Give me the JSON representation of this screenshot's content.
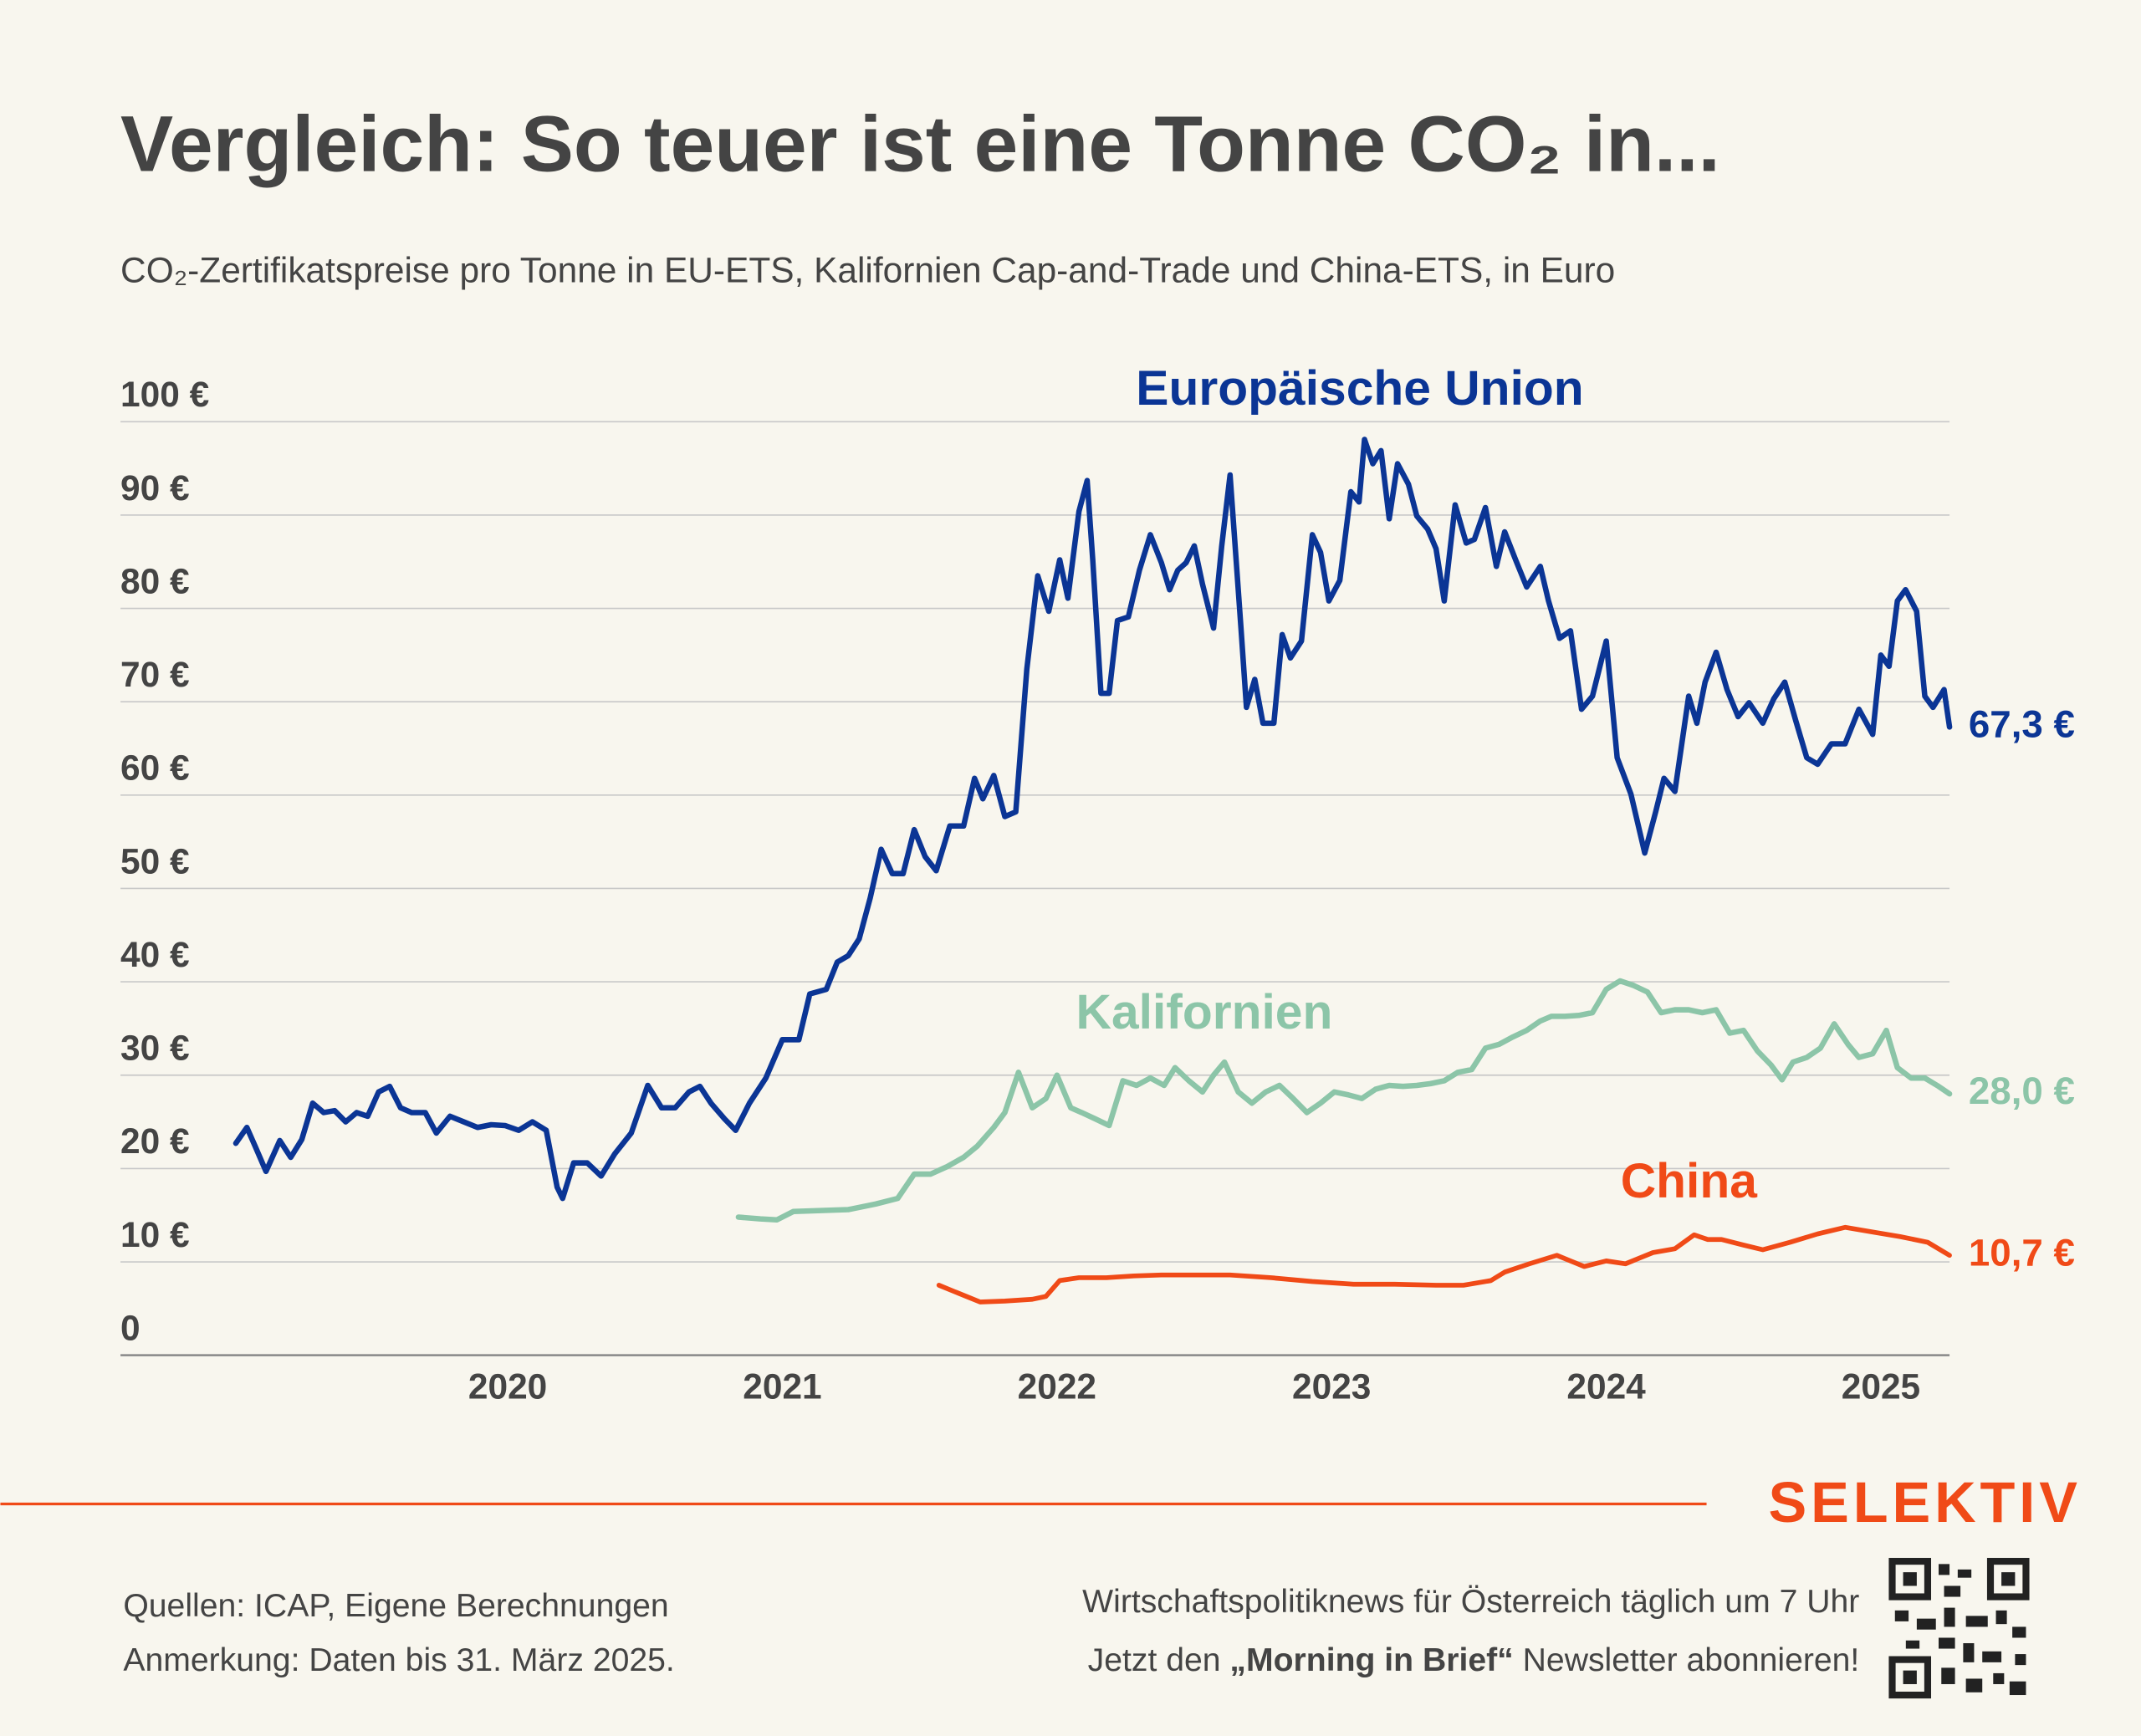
{
  "chart_data": {
    "type": "line",
    "title": "Vergleich: So teuer ist eine Tonne CO₂ in...",
    "subtitle": "CO₂-Zertifikatspreise pro Tonne in EU-ETS, Kalifornien Cap-and-Trade und China-ETS, in Euro",
    "xlim": [
      2018.59,
      2025.25
    ],
    "xticks": [
      2020,
      2021,
      2022,
      2023,
      2024,
      2025
    ],
    "ylim": [
      0,
      100
    ],
    "yticks": [
      0,
      {
        "value": 10,
        "label": "10 €"
      },
      {
        "value": 20,
        "label": "20 €"
      },
      {
        "value": 30,
        "label": "30 €"
      },
      {
        "value": 40,
        "label": "40 €"
      },
      {
        "value": 50,
        "label": "50 €"
      },
      {
        "value": 60,
        "label": "60 €"
      },
      {
        "value": 70,
        "label": "70 €"
      },
      {
        "value": 80,
        "label": "80 €"
      },
      {
        "value": 90,
        "label": "90 €"
      },
      {
        "value": 100,
        "label": "100 €"
      }
    ],
    "grid": true,
    "series": [
      {
        "name": "Europäische Union",
        "color": "#0b3595",
        "last_label": "67,3 €",
        "x": [
          2019.01,
          2019.05,
          2019.08,
          2019.12,
          2019.17,
          2019.21,
          2019.25,
          2019.29,
          2019.33,
          2019.37,
          2019.41,
          2019.45,
          2019.49,
          2019.53,
          2019.57,
          2019.61,
          2019.65,
          2019.7,
          2019.74,
          2019.79,
          2019.84,
          2019.89,
          2019.94,
          2019.99,
          2020.04,
          2020.09,
          2020.14,
          2020.18,
          2020.2,
          2020.24,
          2020.29,
          2020.34,
          2020.39,
          2020.45,
          2020.51,
          2020.56,
          2020.61,
          2020.66,
          2020.7,
          2020.74,
          2020.79,
          2020.83,
          2020.88,
          2020.94,
          2021.0,
          2021.06,
          2021.1,
          2021.16,
          2021.2,
          2021.24,
          2021.28,
          2021.32,
          2021.36,
          2021.4,
          2021.44,
          2021.48,
          2021.52,
          2021.56,
          2021.61,
          2021.66,
          2021.7,
          2021.73,
          2021.77,
          2021.81,
          2021.85,
          2021.89,
          2021.93,
          2021.97,
          2022.01,
          2022.04,
          2022.08,
          2022.11,
          2022.13,
          2022.16,
          2022.19,
          2022.22,
          2022.26,
          2022.3,
          2022.34,
          2022.38,
          2022.41,
          2022.44,
          2022.47,
          2022.5,
          2022.53,
          2022.57,
          2022.6,
          2022.63,
          2022.67,
          2022.69,
          2022.72,
          2022.75,
          2022.79,
          2022.82,
          2022.85,
          2022.89,
          2022.93,
          2022.96,
          2022.99,
          2023.03,
          2023.07,
          2023.1,
          2023.12,
          2023.15,
          2023.18,
          2023.21,
          2023.24,
          2023.28,
          2023.31,
          2023.35,
          2023.38,
          2023.41,
          2023.45,
          2023.49,
          2023.52,
          2023.56,
          2023.6,
          2023.63,
          2023.67,
          2023.71,
          2023.76,
          2023.79,
          2023.83,
          2023.87,
          2023.91,
          2023.95,
          2024.0,
          2024.04,
          2024.09,
          2024.14,
          2024.18,
          2024.21,
          2024.25,
          2024.3,
          2024.33,
          2024.36,
          2024.4,
          2024.44,
          2024.48,
          2024.52,
          2024.57,
          2024.61,
          2024.65,
          2024.69,
          2024.73,
          2024.77,
          2024.82,
          2024.87,
          2024.92,
          2024.97,
          2025.0,
          2025.03,
          2025.06,
          2025.09,
          2025.13,
          2025.16,
          2025.19,
          2025.23,
          2025.25
        ],
        "values": [
          22.7,
          24.4,
          22.4,
          19.7,
          23.0,
          21.2,
          23.1,
          27.0,
          26.0,
          26.2,
          25.0,
          26.0,
          25.6,
          28.2,
          28.8,
          26.5,
          26.0,
          26.0,
          23.8,
          25.6,
          25.0,
          24.4,
          24.7,
          24.6,
          24.1,
          25.0,
          24.1,
          18.0,
          16.8,
          20.6,
          20.6,
          19.2,
          21.6,
          23.8,
          28.9,
          26.5,
          26.5,
          28.2,
          28.8,
          27.0,
          25.3,
          24.1,
          27.0,
          29.7,
          33.8,
          33.8,
          38.7,
          39.2,
          42.1,
          42.8,
          44.6,
          49.0,
          54.2,
          51.6,
          51.6,
          56.3,
          53.4,
          51.9,
          56.7,
          56.7,
          61.8,
          59.6,
          62.1,
          57.7,
          58.2,
          73.5,
          83.5,
          79.7,
          85.2,
          81.1,
          90.4,
          93.7,
          85.2,
          70.9,
          70.9,
          78.7,
          79.1,
          84.1,
          87.9,
          84.9,
          82.0,
          84.1,
          84.9,
          86.7,
          82.6,
          77.9,
          86.7,
          94.3,
          77.9,
          69.4,
          72.4,
          67.7,
          67.7,
          77.2,
          74.7,
          76.5,
          87.9,
          86.0,
          80.8,
          83.0,
          92.5,
          91.4,
          98.1,
          95.5,
          96.9,
          89.6,
          95.5,
          93.3,
          89.9,
          88.5,
          86.4,
          80.8,
          91.1,
          87.0,
          87.4,
          90.8,
          84.5,
          88.2,
          85.2,
          82.3,
          84.5,
          80.8,
          76.8,
          77.6,
          69.2,
          70.6,
          76.5,
          64.0,
          60.1,
          53.8,
          58.2,
          61.8,
          60.4,
          70.6,
          67.7,
          72.1,
          75.3,
          71.3,
          68.4,
          69.9,
          67.7,
          70.3,
          72.1,
          68.0,
          64.0,
          63.3,
          65.5,
          65.5,
          69.2,
          66.5,
          75.0,
          73.8,
          80.8,
          82.0,
          79.7,
          70.6,
          69.4,
          71.3,
          67.3
        ]
      },
      {
        "name": "Kalifornien",
        "color": "#8cc5a8",
        "last_label": "28,0 €",
        "x": [
          2020.84,
          2020.92,
          2020.98,
          2021.04,
          2021.14,
          2021.24,
          2021.34,
          2021.42,
          2021.48,
          2021.54,
          2021.6,
          2021.66,
          2021.71,
          2021.77,
          2021.81,
          2021.86,
          2021.91,
          2021.96,
          2022.0,
          2022.05,
          2022.09,
          2022.14,
          2022.19,
          2022.24,
          2022.29,
          2022.34,
          2022.39,
          2022.43,
          2022.48,
          2022.53,
          2022.57,
          2022.61,
          2022.66,
          2022.71,
          2022.76,
          2022.81,
          2022.86,
          2022.91,
          2022.96,
          2023.01,
          2023.06,
          2023.11,
          2023.16,
          2023.21,
          2023.26,
          2023.31,
          2023.36,
          2023.41,
          2023.46,
          2023.51,
          2023.56,
          2023.61,
          2023.66,
          2023.71,
          2023.76,
          2023.8,
          2023.85,
          2023.9,
          2023.95,
          2024.0,
          2024.05,
          2024.1,
          2024.15,
          2024.2,
          2024.25,
          2024.3,
          2024.35,
          2024.4,
          2024.45,
          2024.5,
          2024.55,
          2024.6,
          2024.64,
          2024.68,
          2024.73,
          2024.78,
          2024.83,
          2024.88,
          2024.92,
          2024.97,
          2025.02,
          2025.06,
          2025.11,
          2025.16,
          2025.21,
          2025.25
        ],
        "values": [
          14.8,
          14.6,
          14.5,
          15.4,
          15.5,
          15.6,
          16.2,
          16.8,
          19.4,
          19.4,
          20.2,
          21.2,
          22.4,
          24.4,
          26.0,
          30.3,
          26.5,
          27.5,
          30.0,
          26.5,
          26.0,
          25.3,
          24.6,
          29.4,
          28.9,
          29.7,
          28.9,
          30.8,
          29.4,
          28.2,
          30.0,
          31.4,
          28.2,
          27.0,
          28.2,
          28.9,
          27.5,
          26.0,
          27.0,
          28.2,
          27.9,
          27.5,
          28.5,
          28.9,
          28.8,
          28.9,
          29.1,
          29.4,
          30.3,
          30.6,
          32.9,
          33.3,
          34.1,
          34.8,
          35.8,
          36.3,
          36.3,
          36.4,
          36.7,
          39.2,
          40.1,
          39.6,
          38.9,
          36.7,
          37.0,
          37.0,
          36.7,
          37.0,
          34.5,
          34.8,
          32.6,
          31.1,
          29.5,
          31.4,
          31.9,
          32.9,
          35.5,
          33.3,
          31.9,
          32.3,
          34.8,
          30.8,
          29.7,
          29.7,
          28.8,
          28.0
        ]
      },
      {
        "name": "China",
        "color": "#f04a17",
        "last_label": "10,7 €",
        "x": [
          2021.57,
          2021.62,
          2021.67,
          2021.72,
          2021.81,
          2021.91,
          2021.96,
          2022.01,
          2022.08,
          2022.18,
          2022.28,
          2022.38,
          2022.48,
          2022.63,
          2022.78,
          2022.93,
          2023.08,
          2023.23,
          2023.38,
          2023.48,
          2023.58,
          2023.63,
          2023.72,
          2023.82,
          2023.87,
          2023.92,
          2024.0,
          2024.07,
          2024.12,
          2024.17,
          2024.25,
          2024.32,
          2024.37,
          2024.42,
          2024.5,
          2024.57,
          2024.67,
          2024.77,
          2024.87,
          2024.97,
          2025.07,
          2025.17,
          2025.25
        ],
        "values": [
          7.5,
          6.9,
          6.3,
          5.7,
          5.8,
          6.0,
          6.3,
          8.0,
          8.3,
          8.3,
          8.5,
          8.6,
          8.6,
          8.6,
          8.3,
          7.9,
          7.6,
          7.6,
          7.5,
          7.5,
          8.0,
          8.9,
          9.8,
          10.7,
          10.1,
          9.5,
          10.1,
          9.8,
          10.4,
          11.0,
          11.4,
          12.9,
          12.4,
          12.4,
          11.8,
          11.3,
          12.1,
          13.0,
          13.7,
          13.2,
          12.7,
          12.1,
          10.7
        ]
      }
    ]
  },
  "footer": {
    "sources": "Quellen: ICAP, Eigene Berechnungen",
    "note": "Anmerkung: Daten bis 31. März 2025.",
    "brand": "SELEKTIV",
    "promo": "Wirtschaftspolitiknews für Österreich täglich um 7 Uhr",
    "cta": [
      "Jetzt den ",
      "„Morning in Brief“",
      " Newsletter abonnieren!"
    ]
  }
}
